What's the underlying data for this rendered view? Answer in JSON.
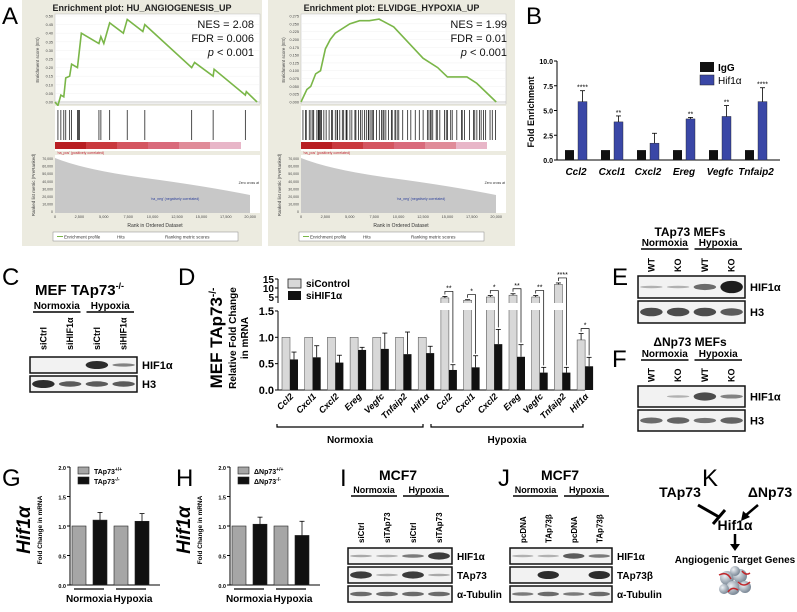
{
  "panels": {
    "A": "A",
    "B": "B",
    "C": "C",
    "D": "D",
    "E": "E",
    "F": "F",
    "G": "G",
    "H": "H",
    "I": "I",
    "J": "J",
    "K": "K"
  },
  "gsea": [
    {
      "title": "Enrichment plot: HU_ANGIOGENESIS_UP",
      "nes": "NES = 2.08",
      "fdr": "FDR = 0.006",
      "p": "p",
      "p_rest": " < 0.001",
      "es_label": "Enrichment score (ES)",
      "metric_label": "Ranked list metric (PreRanked)",
      "pos_label": "'na_pos' (positively correlated)",
      "neg_label": "'na_neg' (negatively correlated)",
      "zero_cross": "Zero cross at",
      "xlabel": "Rank in Ordered Dataset",
      "es_ticks": [
        "0.50",
        "0.45",
        "0.40",
        "0.35",
        "0.30",
        "0.25",
        "0.20",
        "0.15",
        "0.10",
        "0.05",
        "0.00"
      ],
      "metric_ticks": [
        "70,000",
        "60,000",
        "50,000",
        "40,000",
        "30,000",
        "20,000",
        "10,000",
        "0"
      ],
      "x_ticks": [
        "0",
        "2,500",
        "5,000",
        "7,500",
        "10,000",
        "12,500",
        "15,000",
        "17,500",
        "20,000"
      ],
      "legend": [
        "Enrichment profile",
        "Hits",
        "Ranking metric scores"
      ]
    },
    {
      "title": "Enrichment plot: ELVIDGE_HYPOXIA_UP",
      "nes": "NES = 1.99",
      "fdr": "FDR = 0.01",
      "p": "p",
      "p_rest": " < 0.001",
      "es_label": "Enrichment score (ES)",
      "metric_label": "Ranked list metric (PreRanked)",
      "pos_label": "'na_pos' (positively correlated)",
      "neg_label": "'na_neg' (negatively correlated)",
      "zero_cross": "Zero cross at",
      "xlabel": "Rank in Ordered Dataset",
      "es_ticks": [
        "0.275",
        "0.250",
        "0.225",
        "0.200",
        "0.175",
        "0.150",
        "0.125",
        "0.100",
        "0.075",
        "0.050",
        "0.025",
        "0.000"
      ],
      "metric_ticks": [
        "70,000",
        "60,000",
        "50,000",
        "40,000",
        "30,000",
        "20,000",
        "10,000",
        "0"
      ],
      "x_ticks": [
        "0",
        "2,500",
        "5,000",
        "7,500",
        "10,000",
        "12,500",
        "15,000",
        "17,500",
        "20,000"
      ],
      "legend": [
        "Enrichment profile",
        "Hits",
        "Ranking metric scores"
      ]
    }
  ],
  "panelB": {
    "ylabel": "Fold Enrichment",
    "yticks": [
      "0.0",
      "2.5",
      "5.0",
      "7.5",
      "10.0"
    ],
    "legend": [
      "IgG",
      "Hif1α"
    ]
  },
  "panelC": {
    "title": "MEF TAp73",
    "sup": "-/-",
    "conditions": [
      "Normoxia",
      "Hypoxia"
    ],
    "lanes": [
      "siCtrl",
      "siHIF1α",
      "siCtrl",
      "siHIF1α"
    ],
    "blots": [
      "HIF1α",
      "H3"
    ]
  },
  "panelD": {
    "ylabel1": "MEF TAp73",
    "sup": "-/-",
    "ylabel2": "Relative Fold Change",
    "ylabel3": "in mRNA",
    "legend": [
      "siControl",
      "siHIF1α"
    ],
    "yticks_low": [
      "0.0",
      "0.5",
      "1.0",
      "1.5"
    ],
    "yticks_high": [
      "5",
      "10",
      "15"
    ],
    "groups": [
      "Normoxia",
      "Hypoxia"
    ]
  },
  "panelE": {
    "title": "TAp73 MEFs",
    "conditions": [
      "Normoxia",
      "Hypoxia"
    ],
    "lanes": [
      "WT",
      "KO",
      "WT",
      "KO"
    ],
    "blots": [
      "HIF1α",
      "H3"
    ]
  },
  "panelF": {
    "title": "ΔNp73 MEFs",
    "conditions": [
      "Normoxia",
      "Hypoxia"
    ],
    "lanes": [
      "WT",
      "KO",
      "WT",
      "KO"
    ],
    "blots": [
      "HIF1α",
      "H3"
    ]
  },
  "panelG": {
    "ylabel1": "Hif1α",
    "ylabel2": "Fold Change in mRNA",
    "legend": [
      "TAp73",
      "TAp73"
    ],
    "legend_sup": [
      "+/+",
      "-/-"
    ],
    "yticks": [
      "0.0",
      "0.5",
      "1.0",
      "1.5",
      "2.0"
    ],
    "groups": [
      "Normoxia",
      "Hypoxia"
    ]
  },
  "panelH": {
    "ylabel1": "Hif1α",
    "ylabel2": "Fold Change in mRNA",
    "legend": [
      "ΔNp73",
      "ΔNp73"
    ],
    "legend_sup": [
      "+/+",
      "-/-"
    ],
    "yticks": [
      "0.0",
      "0.5",
      "1.0",
      "1.5",
      "2.0"
    ],
    "groups": [
      "Normoxia",
      "Hypoxia"
    ]
  },
  "panelI": {
    "title": "MCF7",
    "conditions": [
      "Normoxia",
      "Hypoxia"
    ],
    "lanes": [
      "siCtrl",
      "siTAp73",
      "siCtrl",
      "siTAp73"
    ],
    "blots": [
      "HIF1α",
      "TAp73",
      "α-Tubulin"
    ]
  },
  "panelJ": {
    "title": "MCF7",
    "conditions": [
      "Normoxia",
      "Hypoxia"
    ],
    "lanes": [
      "pcDNA",
      "TAp73β",
      "pcDNA",
      "TAp73β"
    ],
    "blots": [
      "HIF1α",
      "TAp73β",
      "α-Tubulin"
    ]
  },
  "panelK": {
    "tap73": "TAp73",
    "dnp73": "ΔNp73",
    "hif": "Hif1α",
    "targets": "Angiogenic Target Genes"
  },
  "colors": {
    "gsea_line": "#7ab648",
    "hif_bar": "#3a47a6",
    "igg_bar": "#111111",
    "sicontrol": "#d8d8d8",
    "sihif": "#111111",
    "wt_bar": "#a6a6a6",
    "ko_bar": "#111111"
  },
  "chart_data": [
    {
      "type": "line",
      "title": "Enrichment plot: HU_ANGIOGENESIS_UP",
      "xlabel": "Rank in Ordered Dataset",
      "ylabel": "Enrichment score (ES)",
      "xlim": [
        0,
        21000
      ],
      "ylim": [
        0,
        0.5
      ],
      "x": [
        0,
        300,
        600,
        900,
        1100,
        1500,
        1700,
        2300,
        2400,
        2500,
        2700,
        4500,
        4700,
        5000,
        5600,
        7000,
        7400,
        9000,
        9200,
        14000,
        14300,
        16200,
        16300,
        19500,
        19600,
        20700
      ],
      "y": [
        0,
        -0.02,
        0.04,
        0.03,
        0.14,
        0.15,
        0.22,
        0.2,
        0.25,
        0.3,
        0.4,
        0.34,
        0.38,
        0.34,
        0.46,
        0.4,
        0.48,
        0.41,
        0.45,
        0.2,
        0.23,
        0.15,
        0.19,
        0.04,
        0.06,
        0
      ],
      "hits": [
        300,
        600,
        900,
        1100,
        1500,
        1700,
        2300,
        2400,
        2500,
        4500,
        4700,
        5600,
        7400,
        9200,
        14000,
        16200,
        19500
      ]
    },
    {
      "type": "line",
      "title": "Enrichment plot: ELVIDGE_HYPOXIA_UP",
      "xlabel": "Rank in Ordered Dataset",
      "ylabel": "Enrichment score (ES)",
      "xlim": [
        0,
        21000
      ],
      "ylim": [
        0,
        0.275
      ],
      "x": [
        0,
        600,
        1000,
        1500,
        2000,
        2500,
        3000,
        3500,
        5000,
        6000,
        7000,
        8000,
        9500,
        11000,
        12500,
        14000,
        15000,
        17000,
        18000,
        19000,
        20000
      ],
      "y": [
        0,
        0.04,
        0.05,
        0.09,
        0.1,
        0.17,
        0.2,
        0.22,
        0.25,
        0.26,
        0.26,
        0.265,
        0.24,
        0.19,
        0.14,
        0.11,
        0.08,
        0.08,
        0.06,
        0.03,
        0
      ]
    },
    {
      "type": "bar",
      "title": "B",
      "ylabel": "Fold Enrichment",
      "ylim": [
        0,
        10
      ],
      "categories": [
        "Ccl2",
        "Cxcl1",
        "Cxcl2",
        "Ereg",
        "Vegfc",
        "Tnfaip2"
      ],
      "series": [
        {
          "name": "IgG",
          "values": [
            1,
            1,
            1,
            1,
            1,
            1
          ],
          "errors": [
            0,
            0,
            0,
            0,
            0,
            0
          ]
        },
        {
          "name": "Hif1α",
          "values": [
            5.9,
            3.85,
            1.7,
            4.15,
            4.4,
            5.9
          ],
          "errors": [
            1.1,
            0.6,
            1.0,
            0.15,
            1.1,
            1.4
          ]
        }
      ],
      "significance": [
        "****",
        "**",
        "",
        "**",
        "**",
        "****"
      ]
    },
    {
      "type": "bar",
      "title": "D",
      "ylabel": "Relative Fold Change in mRNA",
      "ylim": [
        0,
        15
      ],
      "categories": [
        "Ccl2",
        "Cxcl1",
        "Cxcl2",
        "Ereg",
        "Vegfc",
        "Tnfaip2",
        "Hif1α",
        "Ccl2",
        "Cxcl1",
        "Cxcl2",
        "Ereg",
        "Vegfc",
        "Tnfaip2",
        "Hif1α"
      ],
      "series": [
        {
          "name": "siControl",
          "values": [
            1,
            1,
            1,
            1,
            1,
            1,
            1,
            4.5,
            3.2,
            5,
            6,
            5,
            12,
            0.95
          ],
          "errors": [
            0,
            0,
            0,
            0,
            0,
            0,
            0,
            0.8,
            0.3,
            0.8,
            0.8,
            0.8,
            0.8,
            0.12
          ]
        },
        {
          "name": "siHIF1α",
          "values": [
            0.58,
            0.62,
            0.52,
            0.76,
            0.78,
            0.68,
            0.7,
            0.38,
            0.43,
            0.87,
            0.63,
            0.33,
            0.33,
            0.45
          ],
          "errors": [
            0.14,
            0.22,
            0.14,
            0.05,
            0.3,
            0.42,
            0.13,
            0.1,
            0.22,
            0.28,
            0.23,
            0.1,
            0.1,
            0.17
          ]
        }
      ],
      "significance": [
        "",
        "",
        "",
        "",
        "",
        "",
        "",
        "**",
        "*",
        "*",
        "**",
        "**",
        "****",
        "*"
      ]
    },
    {
      "type": "bar",
      "title": "G",
      "ylabel": "Hif1α Fold Change in mRNA",
      "ylim": [
        0,
        2
      ],
      "categories": [
        "Normoxia",
        "Hypoxia"
      ],
      "series": [
        {
          "name": "TAp73+/+",
          "values": [
            1,
            1
          ],
          "errors": [
            0,
            0
          ]
        },
        {
          "name": "TAp73-/-",
          "values": [
            1.1,
            1.08
          ],
          "errors": [
            0.13,
            0.13
          ]
        }
      ]
    },
    {
      "type": "bar",
      "title": "H",
      "ylabel": "Hif1α Fold Change in mRNA",
      "ylim": [
        0,
        2
      ],
      "categories": [
        "Normoxia",
        "Hypoxia"
      ],
      "series": [
        {
          "name": "ΔNp73+/+",
          "values": [
            1,
            1
          ],
          "errors": [
            0,
            0
          ]
        },
        {
          "name": "ΔNp73-/-",
          "values": [
            1.03,
            0.84
          ],
          "errors": [
            0.12,
            0.24
          ]
        }
      ]
    }
  ]
}
